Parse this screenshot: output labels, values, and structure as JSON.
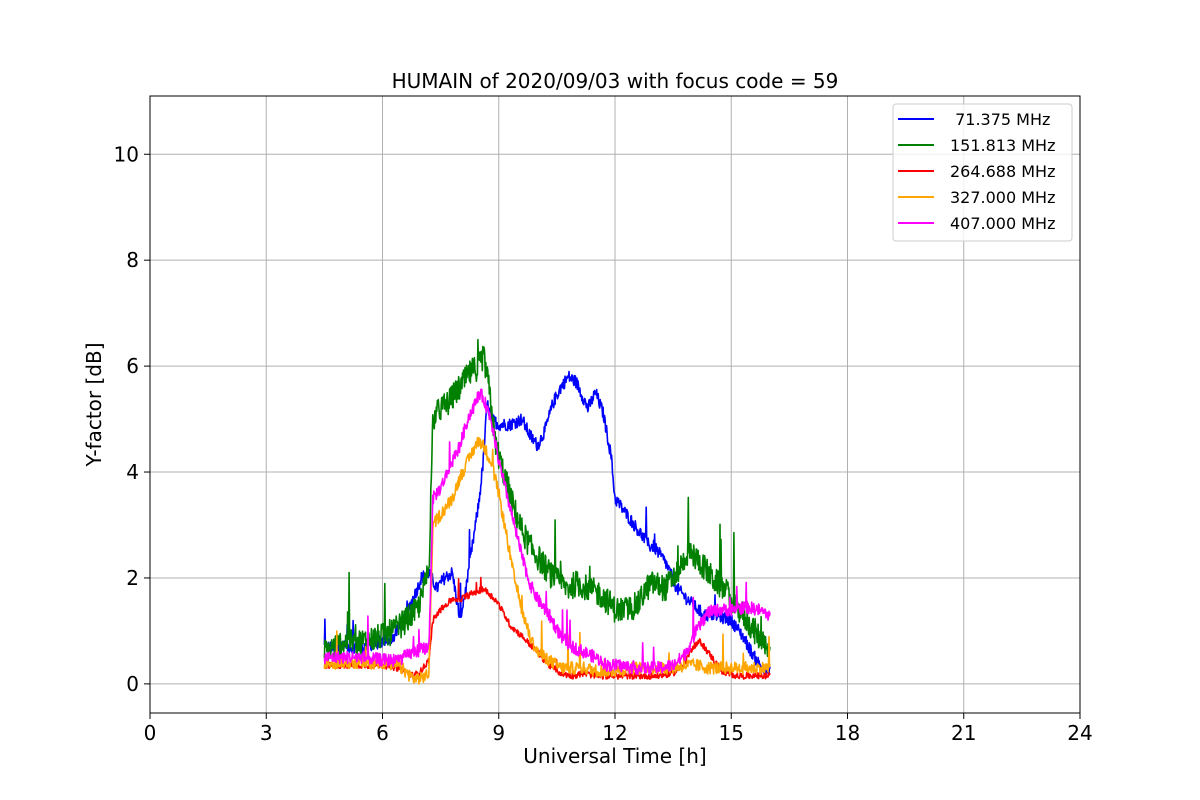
{
  "chart_data": {
    "type": "line",
    "title": "HUMAIN of 2020/09/03 with focus code = 59",
    "xlabel": "Universal Time [h]",
    "ylabel": "Y-factor [dB]",
    "xlim": [
      0,
      24
    ],
    "ylim": [
      -0.55,
      11.1
    ],
    "xticks": [
      0,
      3,
      6,
      9,
      12,
      15,
      18,
      21,
      24
    ],
    "yticks": [
      0,
      2,
      4,
      6,
      8,
      10
    ],
    "grid": true,
    "legend_position": "top-right",
    "series": [
      {
        "name": " 71.375 MHz",
        "color": "#0000ff",
        "noise": 0.12,
        "x": [
          4.5,
          5.0,
          5.5,
          6.0,
          6.3,
          6.6,
          6.9,
          7.0,
          7.2,
          7.4,
          7.6,
          7.8,
          8.0,
          8.2,
          8.4,
          8.5,
          8.6,
          8.7,
          8.8,
          9.0,
          9.3,
          9.6,
          9.8,
          10.0,
          10.2,
          10.4,
          10.6,
          10.8,
          11.0,
          11.3,
          11.5,
          11.7,
          11.9,
          12.0,
          12.3,
          12.6,
          12.9,
          13.0,
          13.3,
          13.6,
          14.0,
          14.3,
          14.6,
          15.0,
          15.3,
          15.6,
          15.9,
          16.0
        ],
        "y": [
          0.7,
          0.7,
          0.7,
          0.8,
          0.9,
          1.3,
          1.8,
          2.0,
          2.1,
          1.8,
          2.0,
          2.1,
          1.2,
          2.0,
          3.0,
          3.5,
          4.2,
          5.3,
          5.0,
          4.9,
          4.9,
          5.0,
          4.7,
          4.5,
          4.8,
          5.3,
          5.6,
          5.8,
          5.7,
          5.2,
          5.5,
          5.1,
          4.3,
          3.5,
          3.2,
          2.9,
          2.6,
          2.6,
          2.3,
          1.8,
          1.5,
          1.3,
          1.3,
          1.2,
          0.9,
          0.5,
          0.2,
          0.3
        ]
      },
      {
        "name": "151.813 MHz",
        "color": "#008000",
        "noise": 0.25,
        "x": [
          4.5,
          5.0,
          5.5,
          6.0,
          6.3,
          6.6,
          6.9,
          7.0,
          7.2,
          7.3,
          7.5,
          7.7,
          7.9,
          8.1,
          8.3,
          8.5,
          8.6,
          8.7,
          8.8,
          8.9,
          9.0,
          9.2,
          9.4,
          9.6,
          9.8,
          10.0,
          10.2,
          10.4,
          10.6,
          10.8,
          11.0,
          11.3,
          11.6,
          11.9,
          12.0,
          12.3,
          12.6,
          12.8,
          13.0,
          13.3,
          13.6,
          13.9,
          14.2,
          14.5,
          14.8,
          15.1,
          15.4,
          15.7,
          16.0
        ],
        "y": [
          0.6,
          0.8,
          0.8,
          0.9,
          1.0,
          1.2,
          1.4,
          1.6,
          2.2,
          5.0,
          5.2,
          5.3,
          5.5,
          5.7,
          5.9,
          6.0,
          6.2,
          5.8,
          5.3,
          4.6,
          4.3,
          3.8,
          3.3,
          2.9,
          2.6,
          2.4,
          2.2,
          2.0,
          1.9,
          1.8,
          1.9,
          1.8,
          1.7,
          1.5,
          1.4,
          1.4,
          1.5,
          1.8,
          1.9,
          1.8,
          2.1,
          2.5,
          2.3,
          2.0,
          1.8,
          1.5,
          1.2,
          0.9,
          0.5
        ]
      },
      {
        "name": "264.688 MHz",
        "color": "#ff0000",
        "noise": 0.06,
        "x": [
          4.5,
          5.0,
          5.5,
          6.0,
          6.4,
          6.8,
          7.0,
          7.2,
          7.3,
          7.5,
          7.8,
          8.0,
          8.3,
          8.6,
          8.9,
          9.0,
          9.3,
          9.6,
          10.0,
          10.3,
          10.6,
          10.9,
          11.2,
          11.5,
          11.8,
          12.1,
          12.5,
          12.8,
          13.1,
          13.5,
          13.8,
          14.0,
          14.2,
          14.5,
          14.8,
          15.2,
          15.6,
          16.0
        ],
        "y": [
          0.35,
          0.35,
          0.35,
          0.35,
          0.3,
          0.15,
          0.25,
          0.45,
          1.2,
          1.4,
          1.6,
          1.6,
          1.7,
          1.8,
          1.6,
          1.5,
          1.1,
          0.9,
          0.6,
          0.35,
          0.2,
          0.15,
          0.2,
          0.15,
          0.15,
          0.15,
          0.15,
          0.15,
          0.15,
          0.2,
          0.4,
          0.7,
          0.8,
          0.5,
          0.2,
          0.15,
          0.15,
          0.15
        ]
      },
      {
        "name": "327.000 MHz",
        "color": "#ffa500",
        "noise": 0.12,
        "x": [
          4.5,
          5.0,
          5.5,
          6.0,
          6.4,
          6.8,
          7.0,
          7.2,
          7.3,
          7.5,
          7.8,
          8.0,
          8.2,
          8.4,
          8.5,
          8.6,
          8.8,
          9.0,
          9.2,
          9.4,
          9.6,
          9.8,
          10.0,
          10.3,
          10.6,
          10.9,
          11.2,
          11.5,
          11.8,
          12.1,
          12.5,
          12.8,
          13.1,
          13.5,
          13.8,
          14.1,
          14.4,
          14.7,
          15.0,
          15.4,
          15.7,
          16.0
        ],
        "y": [
          0.4,
          0.4,
          0.4,
          0.4,
          0.35,
          0.1,
          0.1,
          0.2,
          3.0,
          3.2,
          3.5,
          3.9,
          4.2,
          4.5,
          4.6,
          4.5,
          4.2,
          3.6,
          2.8,
          2.0,
          1.4,
          0.9,
          0.6,
          0.45,
          0.3,
          0.3,
          0.3,
          0.25,
          0.25,
          0.25,
          0.3,
          0.3,
          0.3,
          0.3,
          0.35,
          0.35,
          0.3,
          0.3,
          0.3,
          0.3,
          0.3,
          0.3
        ]
      },
      {
        "name": "407.000 MHz",
        "color": "#ff00ff",
        "noise": 0.12,
        "x": [
          4.5,
          5.0,
          5.5,
          6.0,
          6.4,
          6.8,
          7.0,
          7.2,
          7.3,
          7.5,
          7.8,
          8.0,
          8.2,
          8.4,
          8.5,
          8.6,
          8.8,
          9.0,
          9.2,
          9.4,
          9.6,
          9.8,
          10.0,
          10.3,
          10.6,
          10.9,
          11.2,
          11.5,
          11.8,
          12.1,
          12.5,
          12.8,
          13.1,
          13.5,
          13.8,
          14.1,
          14.4,
          14.7,
          15.0,
          15.4,
          15.7,
          16.0
        ],
        "y": [
          0.5,
          0.5,
          0.5,
          0.45,
          0.45,
          0.6,
          0.65,
          0.7,
          3.5,
          3.7,
          4.2,
          4.5,
          5.0,
          5.3,
          5.5,
          5.4,
          5.0,
          4.2,
          3.6,
          3.0,
          2.4,
          1.9,
          1.6,
          1.3,
          0.9,
          0.7,
          0.6,
          0.5,
          0.35,
          0.35,
          0.3,
          0.3,
          0.3,
          0.35,
          0.55,
          1.0,
          1.35,
          1.4,
          1.4,
          1.45,
          1.4,
          1.3
        ]
      }
    ]
  }
}
